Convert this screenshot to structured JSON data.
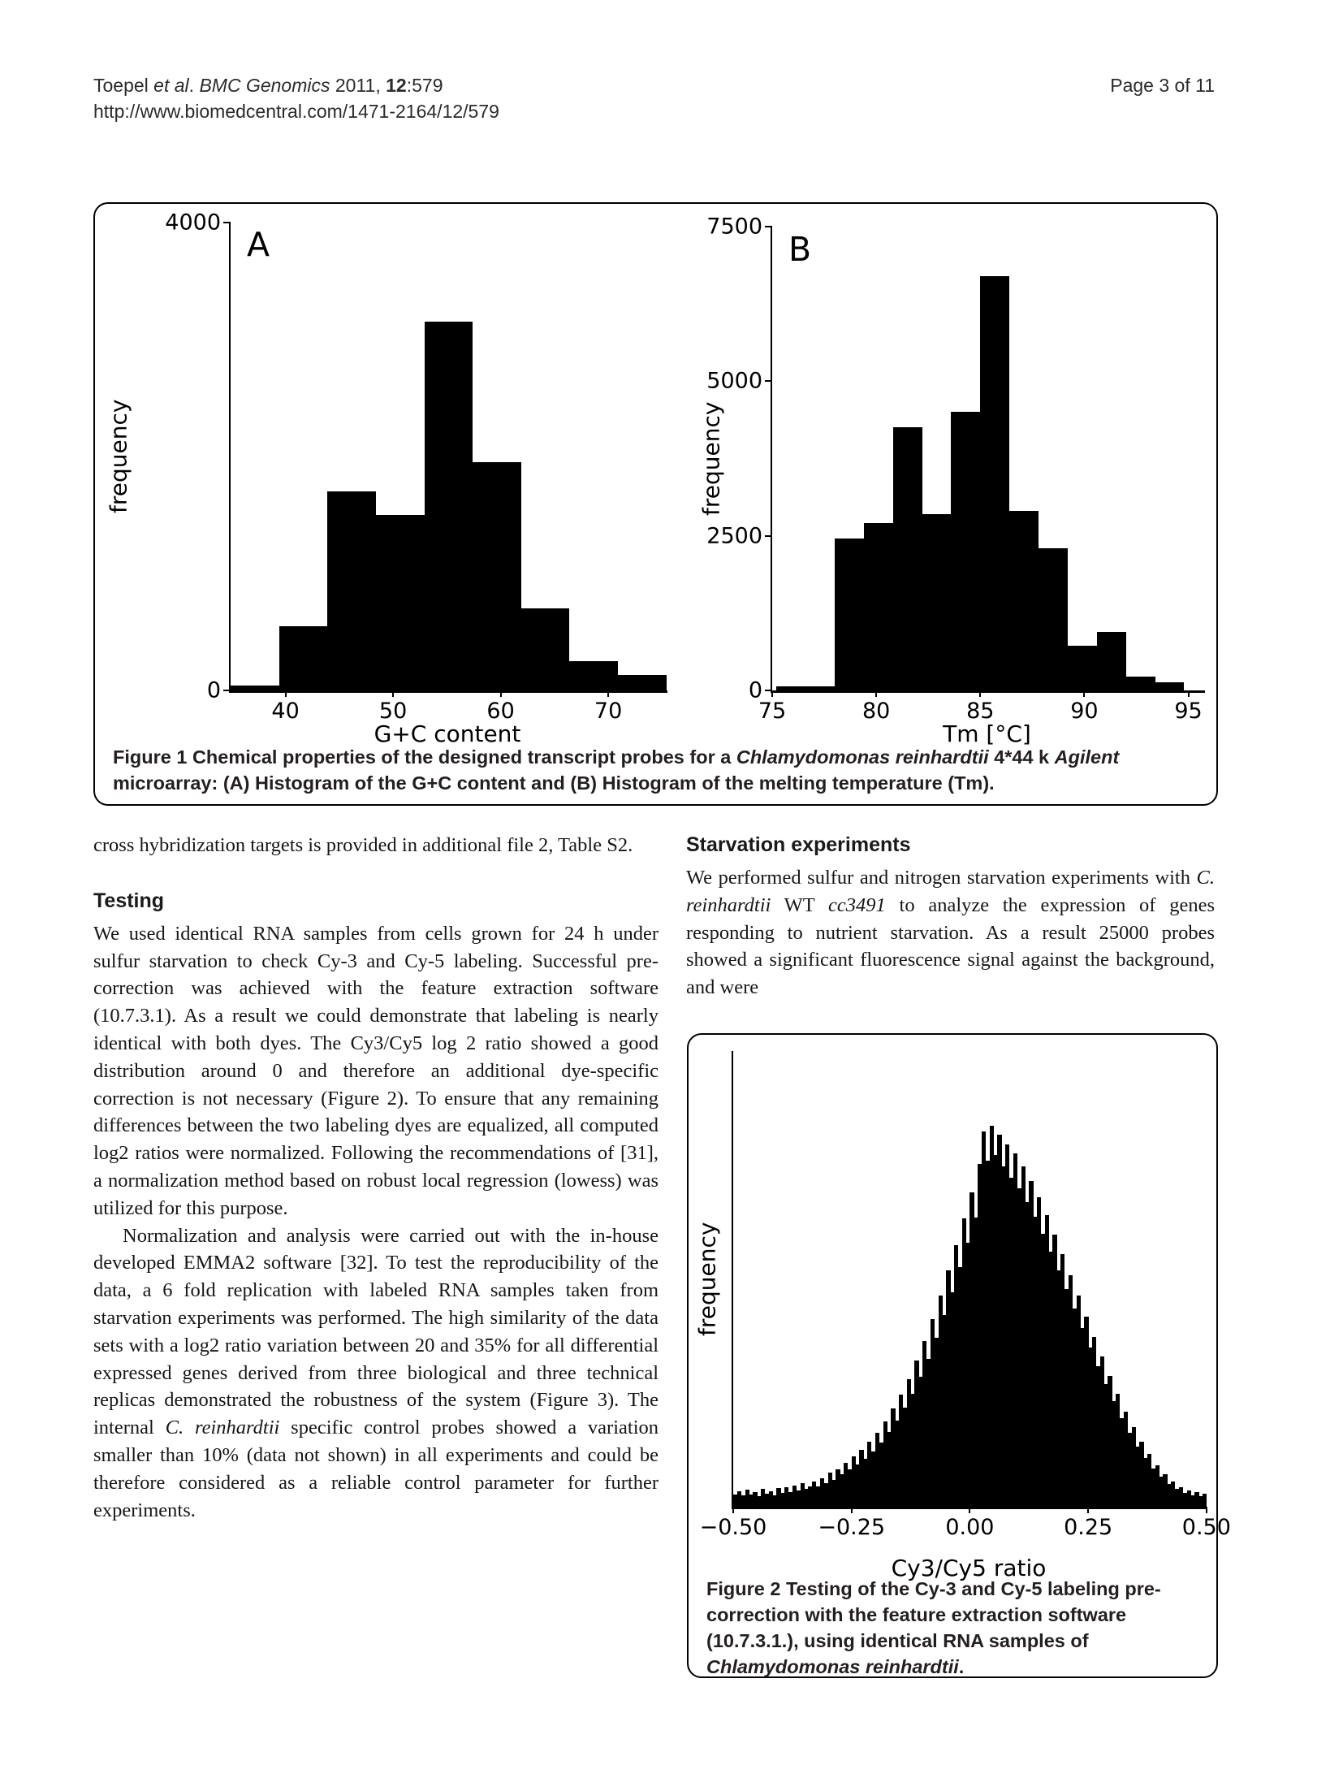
{
  "header": {
    "citation_segments": [
      {
        "t": "Toepel "
      },
      {
        "t": "et al",
        "i": true
      },
      {
        "t": ". "
      },
      {
        "t": "BMC Genomics",
        "i": true
      },
      {
        "t": " 2011, "
      },
      {
        "t": "12",
        "b": true
      },
      {
        "t": ":579"
      }
    ],
    "url": "http://www.biomedcentral.com/1471-2164/12/579",
    "page_info": "Page 3 of 11"
  },
  "figure1": {
    "caption_segments": [
      {
        "t": "Figure 1",
        "b": true
      },
      {
        "t": " Chemical properties of the designed transcript probes for a "
      },
      {
        "t": "Chlamydomonas reinhardtii",
        "i": true
      },
      {
        "t": " 4*44 k "
      },
      {
        "t": "Agilent",
        "i": true
      },
      {
        "t": " microarray: (A) Histogram of the G+C content and (B) Histogram of the melting temperature (Tm)."
      }
    ]
  },
  "figure2": {
    "caption_segments": [
      {
        "t": "Figure 2",
        "b": true
      },
      {
        "t": " Testing of the Cy-3 and Cy-5 labeling pre-correction with the feature extraction software (10.7.3.1.), using identical RNA samples of "
      },
      {
        "t": "Chlamydomonas reinhardtii",
        "i": true
      },
      {
        "t": "."
      }
    ]
  },
  "article": {
    "left_column": [
      {
        "type": "p",
        "segments": [
          {
            "t": "cross hybridization targets is provided in additional file 2, Table S2."
          }
        ]
      },
      {
        "type": "h2",
        "text": "Testing"
      },
      {
        "type": "p",
        "segments": [
          {
            "t": "We used identical RNA samples from cells grown for 24 h under sulfur starvation to check Cy-3 and Cy-5 labeling. Successful pre-correction was achieved with the feature extraction software (10.7.3.1). As a result we could demonstrate that labeling is nearly identical with both dyes. The Cy3/Cy5 log 2 ratio showed a good distribution around 0 and therefore an additional dye-specific correction is not necessary (Figure 2). To ensure that any remaining differences between the two labeling dyes are equalized, all computed log2 ratios were normalized. Following the recommendations of [31], a normalization method based on robust local regression (lowess) was utilized for this purpose."
          }
        ]
      },
      {
        "type": "p",
        "indent": true,
        "segments": [
          {
            "t": "Normalization and analysis were carried out with the in-house developed EMMA2 software [32]. To test the reproducibility of the data, a 6 fold replication with labeled RNA samples taken from starvation experiments was performed. The high similarity of the data sets with a log2 ratio variation between 20 and 35% for all differential expressed genes derived from three biological and three technical replicas demonstrated the robustness of the system (Figure 3). The internal "
          },
          {
            "t": "C. reinhardtii",
            "i": true
          },
          {
            "t": " specific control probes showed a variation smaller than 10% (data not shown) in all experiments and could be therefore considered as a reliable control parameter for further experiments."
          }
        ]
      }
    ],
    "right_column": [
      {
        "type": "h2",
        "text": "Starvation experiments"
      },
      {
        "type": "p",
        "segments": [
          {
            "t": "We performed sulfur and nitrogen starvation experiments with "
          },
          {
            "t": "C. reinhardtii",
            "i": true
          },
          {
            "t": " WT "
          },
          {
            "t": "cc3491",
            "i": true
          },
          {
            "t": " to analyze the expression of genes responding to nutrient starvation. As a result 25000 probes showed a significant fluorescence signal against the background, and were"
          }
        ]
      }
    ]
  },
  "chart_data": [
    {
      "id": "fig1a",
      "type": "bar",
      "panel_label": "A",
      "title": "Histogram of the G+C content",
      "xlabel": "G+C content",
      "ylabel": "frequency",
      "xlim": [
        34.9,
        75.5
      ],
      "ylim": [
        0,
        4000
      ],
      "grid": false,
      "bar_color": "#000000",
      "bin_edges": [
        34.9,
        39.4,
        43.9,
        48.4,
        52.9,
        57.4,
        61.9,
        66.4,
        70.9,
        75.4
      ],
      "values": [
        40,
        550,
        1700,
        1500,
        3150,
        1950,
        700,
        250,
        130
      ],
      "xticks": [
        {
          "v": 40,
          "label": "40"
        },
        {
          "v": 50,
          "label": "50"
        },
        {
          "v": 60,
          "label": "60"
        },
        {
          "v": 70,
          "label": "70"
        }
      ],
      "yticks": [
        {
          "v": 0,
          "label": "0"
        },
        {
          "v": 4000,
          "label": "4000"
        }
      ]
    },
    {
      "id": "fig1b",
      "type": "bar",
      "panel_label": "B",
      "title": "Histogram of the melting temperature (Tm)",
      "xlabel": "Tm [°C]",
      "ylabel": "frequency",
      "xlim": [
        75,
        95.8
      ],
      "ylim": [
        0,
        7500
      ],
      "grid": false,
      "bar_color": "#000000",
      "bin_edges": [
        75.2,
        78,
        79.4,
        80.8,
        82.2,
        83.6,
        85,
        86.4,
        87.8,
        89.2,
        90.6,
        92,
        93.4,
        94.8
      ],
      "values": [
        60,
        2450,
        2700,
        4250,
        2850,
        4500,
        6700,
        2900,
        2300,
        720,
        950,
        230,
        130
      ],
      "xticks": [
        {
          "v": 75,
          "label": "75"
        },
        {
          "v": 80,
          "label": "80"
        },
        {
          "v": 85,
          "label": "85"
        },
        {
          "v": 90,
          "label": "90"
        },
        {
          "v": 95,
          "label": "95"
        }
      ],
      "yticks": [
        {
          "v": 0,
          "label": "0"
        },
        {
          "v": 2500,
          "label": "2500"
        },
        {
          "v": 5000,
          "label": "5000"
        },
        {
          "v": 7500,
          "label": "7500"
        }
      ]
    },
    {
      "id": "fig2",
      "type": "fine_histogram",
      "title": "Cy3/Cy5 log2 ratio distribution",
      "xlabel": "Cy3/Cy5 ratio",
      "ylabel": "frequency",
      "xlim": [
        -0.5,
        0.502
      ],
      "x_start": -0.5,
      "x_end": 0.5,
      "grid": false,
      "bar_color": "#000000",
      "peak_fraction": 0.84,
      "values_pct": [
        3.2,
        4.1,
        2.9,
        4.4,
        3.1,
        3.9,
        2.8,
        4.6,
        3.4,
        4.0,
        3.0,
        4.8,
        3.6,
        5.2,
        3.9,
        5.6,
        4.3,
        6.1,
        4.7,
        5.4,
        6.6,
        5.3,
        7.4,
        6.2,
        8.9,
        7.0,
        9.8,
        8.4,
        11.5,
        9.7,
        13.2,
        11.0,
        14.8,
        12.6,
        16.9,
        14.5,
        19.4,
        16.8,
        22.3,
        19.6,
        25.6,
        22.4,
        29.3,
        25.8,
        33.4,
        29.6,
        38.1,
        34.0,
        43.3,
        38.7,
        49.0,
        44.1,
        55.2,
        50.0,
        61.7,
        56.1,
        68.4,
        62.5,
        75.3,
        69.0,
        82.2,
        75.6,
        89.6,
        98.0,
        90.5,
        99.5,
        91.8,
        97.2,
        88.9,
        94.6,
        86.0,
        92.3,
        83.1,
        89.0,
        79.6,
        85.2,
        75.7,
        80.9,
        71.3,
        76.2,
        66.6,
        71.1,
        61.8,
        65.9,
        56.8,
        60.5,
        51.7,
        55.1,
        46.6,
        49.7,
        41.6,
        44.4,
        36.7,
        39.2,
        32.0,
        34.2,
        27.5,
        29.4,
        23.2,
        24.8,
        19.3,
        20.7,
        15.8,
        17.0,
        12.7,
        13.7,
        10.0,
        10.9,
        7.8,
        8.5,
        6.0,
        6.6,
        4.6,
        5.1,
        3.6,
        4.2,
        3.0,
        3.8,
        2.7,
        3.3
      ],
      "xticks": [
        {
          "v": -0.5,
          "label": "−0.50"
        },
        {
          "v": -0.25,
          "label": "−0.25"
        },
        {
          "v": 0,
          "label": "0.00"
        },
        {
          "v": 0.25,
          "label": "0.25"
        },
        {
          "v": 0.5,
          "label": "0.50"
        }
      ],
      "yticks": []
    }
  ]
}
